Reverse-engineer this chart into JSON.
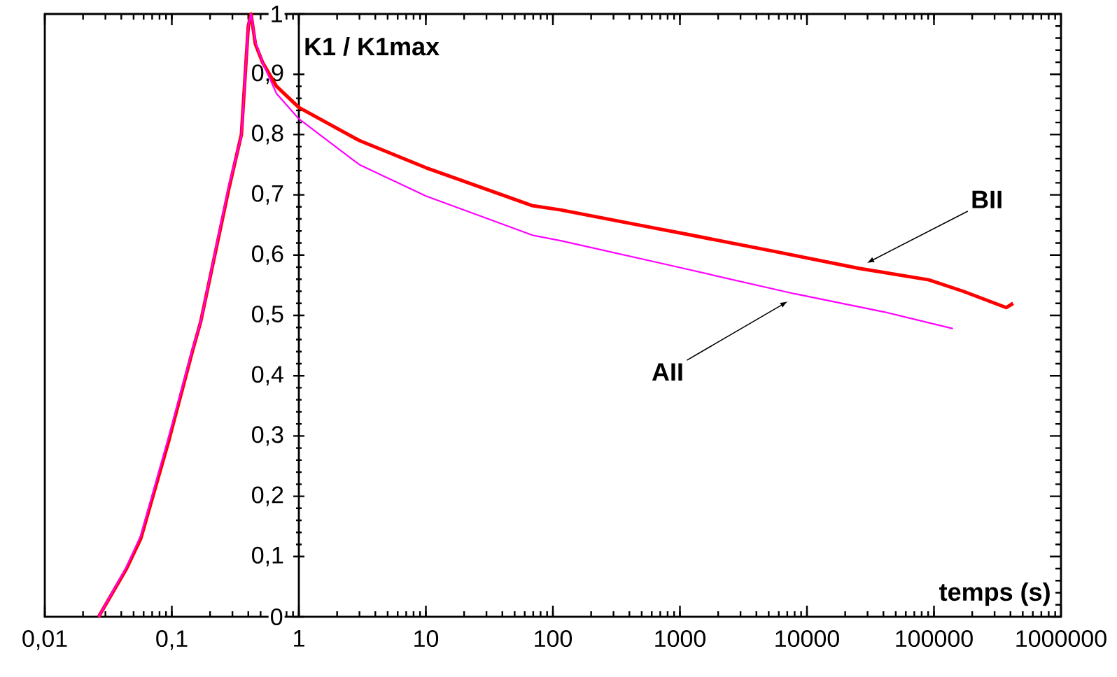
{
  "chart_data": {
    "type": "line",
    "xlabel": "temps (s)",
    "ylabel": "K1 / K1max",
    "log": "x",
    "xlim": [
      0.01,
      1000000
    ],
    "ylim": [
      0,
      1
    ],
    "xticks": [
      {
        "value": 0.01,
        "label": "0,01"
      },
      {
        "value": 0.1,
        "label": "0,1"
      },
      1,
      10,
      100,
      1000,
      10000,
      100000,
      1000000
    ],
    "yticks": [
      0,
      {
        "value": 0.1,
        "label": "0,1"
      },
      {
        "value": 0.2,
        "label": "0,2"
      },
      {
        "value": 0.3,
        "label": "0,3"
      },
      {
        "value": 0.4,
        "label": "0,4"
      },
      {
        "value": 0.5,
        "label": "0,5"
      },
      {
        "value": 0.6,
        "label": "0,6"
      },
      {
        "value": 0.7,
        "label": "0,7"
      },
      {
        "value": 0.8,
        "label": "0,8"
      },
      {
        "value": 0.9,
        "label": "0,9"
      },
      1
    ],
    "grid": false,
    "marker": "none",
    "line_style": "solid",
    "series": [
      {
        "color": "#ff0000",
        "x": [
          0.0265,
          0.044,
          0.057,
          0.094,
          0.145,
          0.169,
          0.281,
          0.353,
          0.4,
          0.42,
          0.455,
          0.517,
          0.667,
          1,
          3,
          10,
          69,
          115,
          528,
          1050,
          5600,
          25700,
          91000,
          170000,
          370000,
          420000
        ],
        "values": [
          0,
          0.08,
          0.13,
          0.29,
          0.44,
          0.49,
          0.71,
          0.8,
          0.98,
          1,
          0.95,
          0.92,
          0.88,
          0.845,
          0.79,
          0.745,
          0.682,
          0.675,
          0.648,
          0.636,
          0.606,
          0.578,
          0.559,
          0.54,
          0.513,
          0.52
        ]
      },
      {
        "color": "#ff00ff",
        "x": [
          0.0265,
          0.044,
          0.057,
          0.094,
          0.145,
          0.169,
          0.281,
          0.353,
          0.4,
          0.42,
          0.455,
          0.517,
          0.667,
          1,
          3,
          10,
          69,
          115,
          880,
          7950,
          40000,
          141000
        ],
        "values": [
          0,
          0.083,
          0.135,
          0.297,
          0.443,
          0.49,
          0.715,
          0.798,
          0.98,
          1,
          0.954,
          0.92,
          0.868,
          0.826,
          0.75,
          0.698,
          0.633,
          0.624,
          0.582,
          0.536,
          0.506,
          0.478
        ]
      }
    ],
    "annotations": [
      {
        "text": "BII",
        "x": 27500,
        "y": 0.58
      },
      {
        "text": "AII",
        "x": 7600,
        "y": 0.53
      }
    ]
  }
}
